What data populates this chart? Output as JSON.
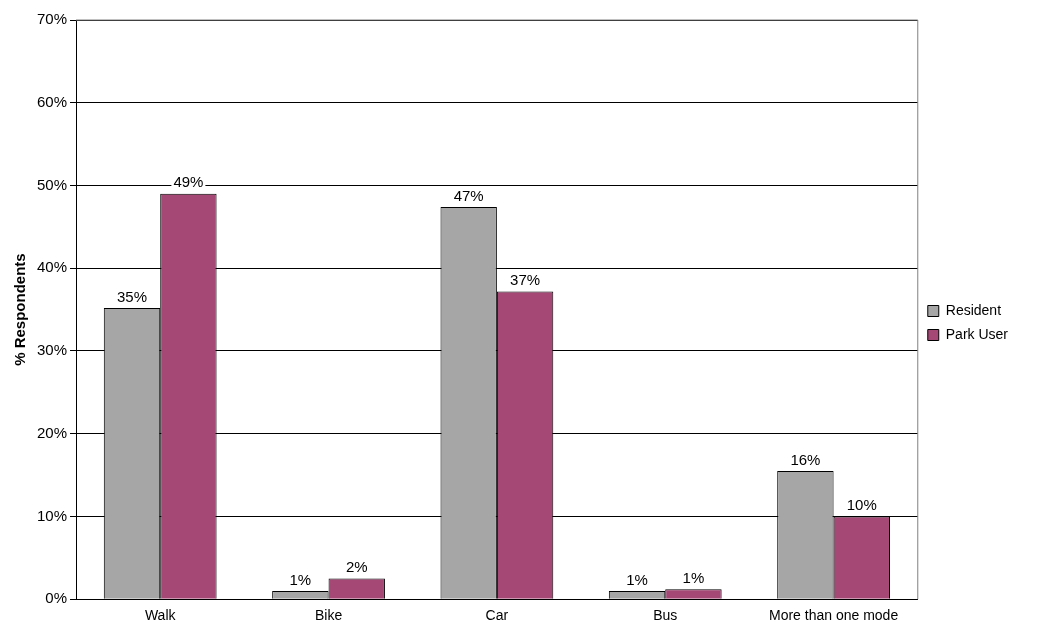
{
  "chart_data": {
    "type": "bar",
    "ylabel": "% Respondents",
    "categories": [
      "Walk",
      "Bike",
      "Car",
      "Bus",
      "More than one mode"
    ],
    "series": [
      {
        "name": "Resident",
        "color": "#a6a6a6",
        "values": [
          35.2,
          1,
          47.4,
          1,
          15.5
        ],
        "value_labels": [
          "35%",
          "1%",
          "47%",
          "1%",
          "16%"
        ]
      },
      {
        "name": "Park User",
        "color": "#a64876",
        "values": [
          49,
          2.5,
          37.2,
          1.2,
          10
        ],
        "value_labels": [
          "49%",
          "2%",
          "37%",
          "1%",
          "10%"
        ]
      }
    ],
    "ylim": [
      0,
      70
    ],
    "yticks": [
      {
        "value": 0,
        "label": "0%"
      },
      {
        "value": 10,
        "label": "10%"
      },
      {
        "value": 20,
        "label": "20%"
      },
      {
        "value": 30,
        "label": "30%"
      },
      {
        "value": 40,
        "label": "40%"
      },
      {
        "value": 50,
        "label": "50%"
      },
      {
        "value": 60,
        "label": "60%"
      },
      {
        "value": 70,
        "label": "70%"
      }
    ],
    "grid": "y",
    "legend": "right"
  }
}
